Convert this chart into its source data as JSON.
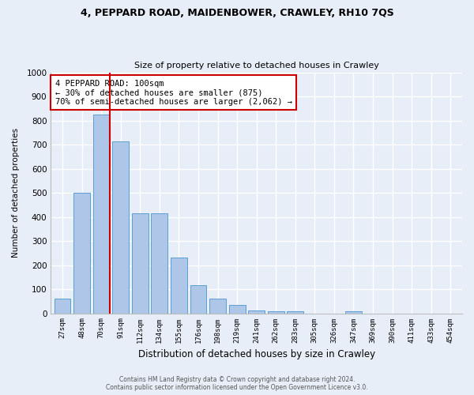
{
  "title_line1": "4, PEPPARD ROAD, MAIDENBOWER, CRAWLEY, RH10 7QS",
  "title_line2": "Size of property relative to detached houses in Crawley",
  "xlabel": "Distribution of detached houses by size in Crawley",
  "ylabel": "Number of detached properties",
  "categories": [
    "27sqm",
    "48sqm",
    "70sqm",
    "91sqm",
    "112sqm",
    "134sqm",
    "155sqm",
    "176sqm",
    "198sqm",
    "219sqm",
    "241sqm",
    "262sqm",
    "283sqm",
    "305sqm",
    "326sqm",
    "347sqm",
    "369sqm",
    "390sqm",
    "411sqm",
    "433sqm",
    "454sqm"
  ],
  "values": [
    60,
    500,
    825,
    712,
    415,
    415,
    230,
    115,
    60,
    33,
    12,
    10,
    10,
    0,
    0,
    10,
    0,
    0,
    0,
    0,
    0
  ],
  "bar_color": "#aec6e8",
  "bar_edge_color": "#5a9fd4",
  "vline_index": 2,
  "vline_color": "#cc0000",
  "annotation_text": "4 PEPPARD ROAD: 100sqm\n← 30% of detached houses are smaller (875)\n70% of semi-detached houses are larger (2,062) →",
  "annotation_box_color": "#ffffff",
  "annotation_box_edge_color": "#cc0000",
  "ylim": [
    0,
    1000
  ],
  "yticks": [
    0,
    100,
    200,
    300,
    400,
    500,
    600,
    700,
    800,
    900,
    1000
  ],
  "footer_line1": "Contains HM Land Registry data © Crown copyright and database right 2024.",
  "footer_line2": "Contains public sector information licensed under the Open Government Licence v3.0.",
  "bg_color": "#e8eef8",
  "plot_bg_color": "#e8eef8",
  "grid_color": "#ffffff"
}
